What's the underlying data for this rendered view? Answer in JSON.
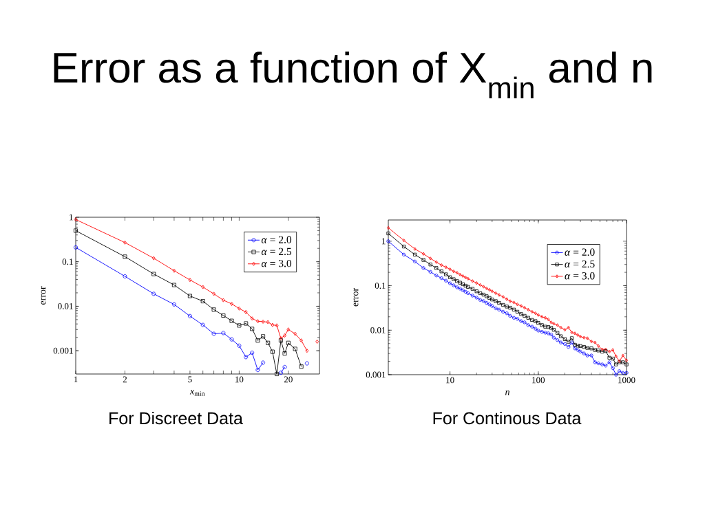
{
  "chart_data": [
    {
      "type": "line",
      "title": "Error as a function of X$_{min}$ and n",
      "xlabel": "*x*$_{min}$",
      "ylabel": "error",
      "annotations": [
        "For Discreet Data"
      ],
      "log": "xy",
      "xlim": [
        1,
        31
      ],
      "ylim": [
        0.0003,
        1
      ],
      "xticks": [
        1,
        2,
        {
          "value": 3,
          "label": null
        },
        {
          "value": 4,
          "label": null
        },
        5,
        {
          "value": 6,
          "label": null
        },
        {
          "value": 7,
          "label": null
        },
        {
          "value": 8,
          "label": null
        },
        {
          "value": 9,
          "label": null
        },
        10,
        20
      ],
      "yticks": [
        0.001,
        0.01,
        0.1,
        1
      ],
      "legend": "top right",
      "line_style": "solid",
      "series": [
        {
          "name": "*α* = 2.0",
          "color": "#0000ff",
          "marker": "circle",
          "x": [
            1,
            2,
            3,
            4,
            5,
            6,
            7,
            8,
            9,
            10,
            11,
            12,
            13,
            14,
            16,
            18,
            19,
            22,
            26
          ],
          "values": [
            0.21,
            0.047,
            0.019,
            0.011,
            0.006,
            0.0038,
            0.0024,
            0.0025,
            0.0018,
            0.0013,
            0.00072,
            0.0009,
            0.00037,
            0.00054,
            null,
            0.00032,
            0.00043,
            null,
            0.00052
          ]
        },
        {
          "name": "*α* = 2.5",
          "color": "#000000",
          "marker": "square",
          "x": [
            1,
            2,
            3,
            4,
            5,
            6,
            7,
            8,
            9,
            10,
            11,
            12,
            13,
            14,
            15,
            16,
            17,
            18,
            19,
            20,
            22,
            24
          ],
          "values": [
            0.5,
            0.13,
            0.053,
            0.03,
            0.017,
            0.013,
            0.0084,
            0.0062,
            0.0047,
            0.0037,
            0.0041,
            0.0031,
            0.0017,
            0.0021,
            0.0015,
            0.00095,
            0.0003,
            0.0017,
            0.00087,
            0.0015,
            0.0011,
            0.00044
          ]
        },
        {
          "name": "*α* = 3.0",
          "color": "#ff0000",
          "marker": "diamond",
          "x": [
            1,
            2,
            3,
            4,
            5,
            6,
            7,
            8,
            9,
            10,
            11,
            12,
            13,
            14,
            15,
            16,
            17,
            18,
            19,
            20,
            22,
            24,
            26,
            28,
            30
          ],
          "values": [
            0.89,
            0.27,
            0.12,
            0.063,
            0.039,
            0.027,
            0.019,
            0.0137,
            0.0113,
            0.0089,
            0.0074,
            0.0053,
            0.0046,
            0.0045,
            0.0044,
            0.0038,
            0.0037,
            0.0019,
            0.0022,
            0.003,
            0.0024,
            0.0017,
            0.001,
            null,
            0.0016
          ]
        }
      ]
    },
    {
      "type": "line",
      "xlabel": "*n*",
      "ylabel": "error",
      "annotations": [
        "For Continous Data"
      ],
      "log": "xy",
      "xlim": [
        2,
        1000
      ],
      "ylim": [
        0.001,
        3
      ],
      "xticks": [
        10,
        100,
        1000
      ],
      "yticks": [
        0.001,
        0.01,
        0.1,
        1
      ],
      "legend": "top right",
      "line_style": "solid",
      "x": [
        2,
        3,
        4,
        5,
        6,
        7,
        8,
        9,
        10,
        11,
        12,
        13,
        14,
        15,
        16,
        18,
        20,
        22,
        24,
        26,
        28,
        30,
        33,
        36,
        40,
        44,
        48,
        53,
        58,
        64,
        70,
        77,
        85,
        93,
        100,
        110,
        120,
        130,
        140,
        150,
        165,
        180,
        200,
        220,
        240,
        260,
        280,
        300,
        330,
        360,
        400,
        440,
        480,
        530,
        580,
        640,
        700,
        760,
        830,
        910,
        1000
      ],
      "series": [
        {
          "name": "*α* = 2.0",
          "color": "#0000ff",
          "marker": "circle",
          "values": [
            1.0,
            0.5,
            0.35,
            0.25,
            0.205,
            0.17,
            0.148,
            0.13,
            0.113,
            0.102,
            0.092,
            0.086,
            0.079,
            0.073,
            0.068,
            0.06,
            0.054,
            0.048,
            0.045,
            0.041,
            0.038,
            0.035,
            0.031,
            0.029,
            0.026,
            0.024,
            0.021,
            0.019,
            0.018,
            0.016,
            0.015,
            0.013,
            0.012,
            0.0108,
            0.0098,
            0.0092,
            0.0088,
            0.0085,
            0.008,
            0.0068,
            0.006,
            0.0053,
            0.0049,
            0.0042,
            0.0053,
            0.0039,
            0.0036,
            0.0033,
            0.003,
            0.0027,
            0.0027,
            0.0019,
            0.0018,
            0.0017,
            0.0016,
            0.0019,
            0.0014,
            0.001,
            0.0012,
            0.0011,
            0.0011
          ]
        },
        {
          "name": "*α* = 2.5",
          "color": "#000000",
          "marker": "square",
          "values": [
            1.5,
            0.76,
            0.5,
            0.38,
            0.3,
            0.25,
            0.21,
            0.18,
            0.155,
            0.14,
            0.127,
            0.117,
            0.108,
            0.1,
            0.094,
            0.085,
            0.075,
            0.068,
            0.063,
            0.058,
            0.053,
            0.049,
            0.045,
            0.041,
            0.037,
            0.034,
            0.032,
            0.029,
            0.026,
            0.023,
            0.021,
            0.019,
            0.017,
            0.016,
            0.0146,
            0.013,
            0.012,
            0.0118,
            0.0113,
            0.0102,
            0.0087,
            0.0073,
            0.0063,
            0.0055,
            0.0066,
            0.0047,
            0.0045,
            0.0044,
            0.0042,
            0.004,
            0.0039,
            0.0036,
            0.0035,
            0.0033,
            0.0034,
            0.0024,
            0.0023,
            0.0017,
            0.0019,
            0.0019,
            0.0017
          ]
        },
        {
          "name": "*α* = 3.0",
          "color": "#ff0000",
          "marker": "diamond",
          "values": [
            2.0,
            1.04,
            0.67,
            0.52,
            0.41,
            0.34,
            0.29,
            0.26,
            0.234,
            0.21,
            0.195,
            0.178,
            0.165,
            0.153,
            0.144,
            0.127,
            0.115,
            0.104,
            0.095,
            0.087,
            0.081,
            0.075,
            0.068,
            0.062,
            0.056,
            0.05,
            0.045,
            0.042,
            0.038,
            0.035,
            0.032,
            0.029,
            0.026,
            0.024,
            0.022,
            0.02,
            0.019,
            0.0175,
            0.015,
            0.014,
            0.013,
            0.0115,
            0.0102,
            0.0115,
            0.0089,
            0.0085,
            0.0078,
            0.0072,
            0.0068,
            0.0066,
            0.0056,
            0.0053,
            0.0044,
            0.0037,
            0.0037,
            0.0033,
            0.0036,
            0.0026,
            0.002,
            0.0027,
            0.0021
          ]
        }
      ]
    }
  ]
}
